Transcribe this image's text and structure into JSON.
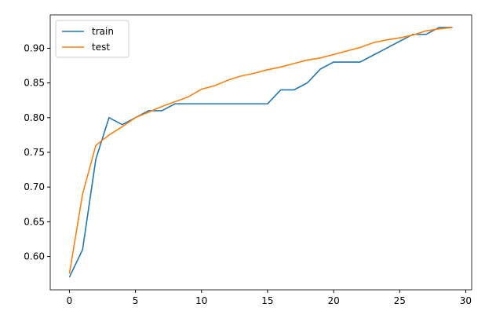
{
  "chart_data": {
    "type": "line",
    "x": [
      0,
      1,
      2,
      3,
      4,
      5,
      6,
      7,
      8,
      9,
      10,
      11,
      12,
      13,
      14,
      15,
      16,
      17,
      18,
      19,
      20,
      21,
      22,
      23,
      24,
      25,
      26,
      27,
      28,
      29
    ],
    "series": [
      {
        "name": "train",
        "color": "#1f77b4",
        "values": [
          0.57,
          0.61,
          0.74,
          0.8,
          0.79,
          0.8,
          0.81,
          0.81,
          0.82,
          0.82,
          0.82,
          0.82,
          0.82,
          0.82,
          0.82,
          0.82,
          0.84,
          0.84,
          0.85,
          0.87,
          0.88,
          0.88,
          0.88,
          0.89,
          0.9,
          0.91,
          0.92,
          0.92,
          0.93,
          0.93
        ]
      },
      {
        "name": "test",
        "color": "#ff7f0e",
        "values": [
          0.575,
          0.69,
          0.76,
          0.775,
          0.787,
          0.8,
          0.808,
          0.816,
          0.823,
          0.83,
          0.841,
          0.846,
          0.854,
          0.86,
          0.864,
          0.869,
          0.873,
          0.878,
          0.883,
          0.886,
          0.891,
          0.896,
          0.901,
          0.908,
          0.912,
          0.915,
          0.919,
          0.925,
          0.928,
          0.93
        ]
      }
    ],
    "xlim": [
      -1.45,
      30.45
    ],
    "ylim": [
      0.552,
      0.948
    ],
    "xticks": [
      0,
      5,
      10,
      15,
      20,
      25,
      30
    ],
    "yticks": [
      {
        "value": 0.6,
        "label": "0.60"
      },
      0.65,
      {
        "value": 0.7,
        "label": "0.70"
      },
      0.75,
      {
        "value": 0.8,
        "label": "0.80"
      },
      0.85,
      {
        "value": 0.9,
        "label": "0.90"
      }
    ],
    "legend": "upper left",
    "grid": false
  }
}
